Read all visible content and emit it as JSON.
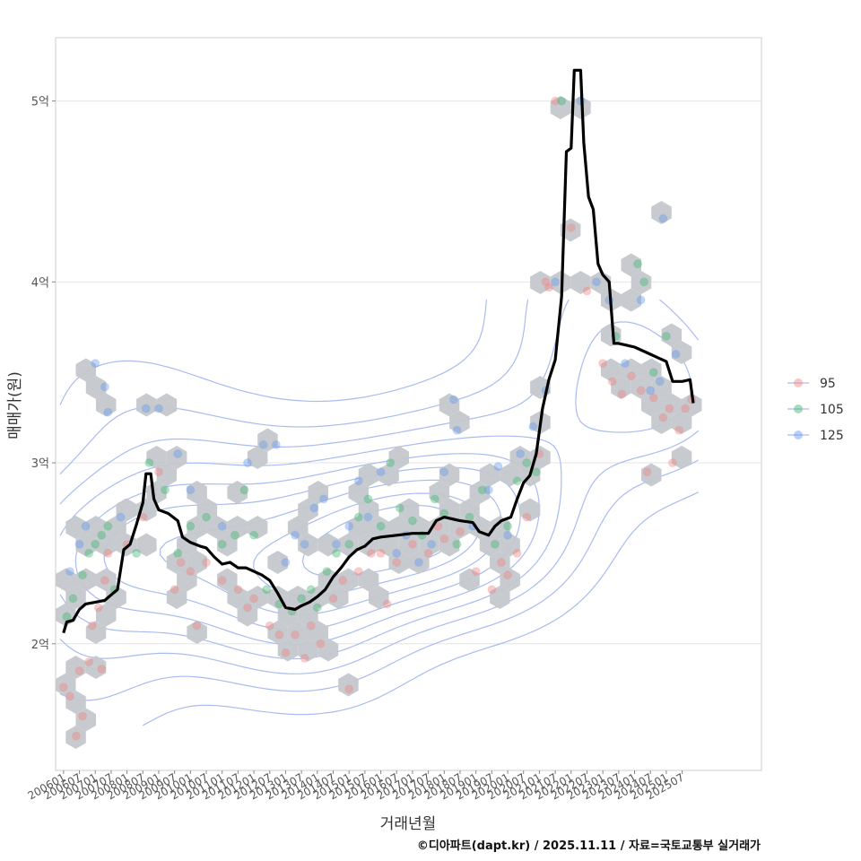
{
  "chart_data": {
    "type": "scatter",
    "title": "",
    "xlabel": "거래년월",
    "ylabel": "매매가(원)",
    "xlim": [
      2005.75,
      2028.0
    ],
    "ylim": [
      1.3,
      5.35
    ],
    "y_ticks": [
      {
        "value": 2,
        "label": "2억"
      },
      {
        "value": 3,
        "label": "3억"
      },
      {
        "value": 4,
        "label": "4억"
      },
      {
        "value": 5,
        "label": "5억"
      }
    ],
    "x_ticks": [
      {
        "value": 2006.0,
        "label": "200601"
      },
      {
        "value": 2006.5,
        "label": "200607"
      },
      {
        "value": 2007.0,
        "label": "200701"
      },
      {
        "value": 2007.5,
        "label": "200707"
      },
      {
        "value": 2008.0,
        "label": "200801"
      },
      {
        "value": 2008.5,
        "label": "200807"
      },
      {
        "value": 2009.0,
        "label": "200901"
      },
      {
        "value": 2009.5,
        "label": "200907"
      },
      {
        "value": 2010.0,
        "label": "201001"
      },
      {
        "value": 2010.5,
        "label": "201007"
      },
      {
        "value": 2011.0,
        "label": "201101"
      },
      {
        "value": 2011.5,
        "label": "201107"
      },
      {
        "value": 2012.0,
        "label": "201201"
      },
      {
        "value": 2012.5,
        "label": "201207"
      },
      {
        "value": 2013.0,
        "label": "201301"
      },
      {
        "value": 2013.5,
        "label": "201307"
      },
      {
        "value": 2014.0,
        "label": "201401"
      },
      {
        "value": 2014.5,
        "label": "201407"
      },
      {
        "value": 2015.0,
        "label": "201501"
      },
      {
        "value": 2015.5,
        "label": "201507"
      },
      {
        "value": 2016.0,
        "label": "201601"
      },
      {
        "value": 2016.5,
        "label": "201607"
      },
      {
        "value": 2017.0,
        "label": "201701"
      },
      {
        "value": 2017.5,
        "label": "201707"
      },
      {
        "value": 2018.0,
        "label": "201801"
      },
      {
        "value": 2018.5,
        "label": "201807"
      },
      {
        "value": 2019.0,
        "label": "201901"
      },
      {
        "value": 2019.5,
        "label": "201907"
      },
      {
        "value": 2020.0,
        "label": "202001"
      },
      {
        "value": 2020.5,
        "label": "202007"
      },
      {
        "value": 2021.0,
        "label": "202101"
      },
      {
        "value": 2021.5,
        "label": "202107"
      },
      {
        "value": 2022.0,
        "label": "202201"
      },
      {
        "value": 2022.5,
        "label": "202207"
      },
      {
        "value": 2023.0,
        "label": "202301"
      },
      {
        "value": 2023.5,
        "label": "202307"
      },
      {
        "value": 2024.0,
        "label": "202401"
      },
      {
        "value": 2024.5,
        "label": "202407"
      },
      {
        "value": 2025.0,
        "label": "202501"
      },
      {
        "value": 2025.5,
        "label": "202507"
      }
    ],
    "legend": {
      "position": "right",
      "entries": [
        {
          "name": "95",
          "color": "#f08080"
        },
        {
          "name": "105",
          "color": "#3cb371"
        },
        {
          "name": "125",
          "color": "#6495ed"
        }
      ]
    },
    "hex_color": "#c4c8cc",
    "contour_color": "#a9bcf0",
    "line_color": "#000000",
    "trend_line": {
      "name": "moving-average price",
      "points": [
        [
          2006.0,
          2.06
        ],
        [
          2006.1,
          2.12
        ],
        [
          2006.3,
          2.13
        ],
        [
          2006.5,
          2.19
        ],
        [
          2006.7,
          2.22
        ],
        [
          2007.0,
          2.23
        ],
        [
          2007.3,
          2.24
        ],
        [
          2007.5,
          2.27
        ],
        [
          2007.7,
          2.3
        ],
        [
          2007.9,
          2.52
        ],
        [
          2008.1,
          2.55
        ],
        [
          2008.3,
          2.66
        ],
        [
          2008.5,
          2.78
        ],
        [
          2008.6,
          2.94
        ],
        [
          2008.75,
          2.94
        ],
        [
          2008.85,
          2.8
        ],
        [
          2009.0,
          2.74
        ],
        [
          2009.3,
          2.72
        ],
        [
          2009.6,
          2.68
        ],
        [
          2009.75,
          2.59
        ],
        [
          2010.0,
          2.56
        ],
        [
          2010.3,
          2.54
        ],
        [
          2010.5,
          2.53
        ],
        [
          2010.75,
          2.48
        ],
        [
          2011.0,
          2.44
        ],
        [
          2011.25,
          2.45
        ],
        [
          2011.5,
          2.42
        ],
        [
          2011.75,
          2.42
        ],
        [
          2012.0,
          2.4
        ],
        [
          2012.25,
          2.38
        ],
        [
          2012.5,
          2.35
        ],
        [
          2012.75,
          2.28
        ],
        [
          2013.0,
          2.2
        ],
        [
          2013.3,
          2.19
        ],
        [
          2013.5,
          2.21
        ],
        [
          2013.75,
          2.23
        ],
        [
          2014.0,
          2.26
        ],
        [
          2014.25,
          2.3
        ],
        [
          2014.5,
          2.37
        ],
        [
          2014.75,
          2.42
        ],
        [
          2015.0,
          2.48
        ],
        [
          2015.25,
          2.52
        ],
        [
          2015.5,
          2.54
        ],
        [
          2015.75,
          2.58
        ],
        [
          2016.0,
          2.59
        ],
        [
          2016.5,
          2.6
        ],
        [
          2017.0,
          2.61
        ],
        [
          2017.5,
          2.61
        ],
        [
          2017.75,
          2.68
        ],
        [
          2018.0,
          2.7
        ],
        [
          2018.5,
          2.68
        ],
        [
          2018.9,
          2.67
        ],
        [
          2019.1,
          2.62
        ],
        [
          2019.4,
          2.6
        ],
        [
          2019.6,
          2.65
        ],
        [
          2019.8,
          2.68
        ],
        [
          2020.1,
          2.7
        ],
        [
          2020.3,
          2.8
        ],
        [
          2020.5,
          2.89
        ],
        [
          2020.7,
          2.93
        ],
        [
          2020.9,
          3.05
        ],
        [
          2021.1,
          3.3
        ],
        [
          2021.3,
          3.46
        ],
        [
          2021.5,
          3.57
        ],
        [
          2021.7,
          3.92
        ],
        [
          2021.85,
          4.72
        ],
        [
          2022.0,
          4.74
        ],
        [
          2022.1,
          5.17
        ],
        [
          2022.3,
          5.17
        ],
        [
          2022.4,
          4.77
        ],
        [
          2022.55,
          4.47
        ],
        [
          2022.7,
          4.4
        ],
        [
          2022.85,
          4.1
        ],
        [
          2023.0,
          4.04
        ],
        [
          2023.2,
          4.0
        ],
        [
          2023.35,
          3.66
        ],
        [
          2023.5,
          3.66
        ],
        [
          2023.75,
          3.65
        ],
        [
          2024.0,
          3.64
        ],
        [
          2024.25,
          3.62
        ],
        [
          2024.5,
          3.6
        ],
        [
          2024.75,
          3.58
        ],
        [
          2025.0,
          3.56
        ],
        [
          2025.2,
          3.45
        ],
        [
          2025.5,
          3.45
        ],
        [
          2025.75,
          3.46
        ],
        [
          2025.85,
          3.33
        ]
      ]
    },
    "series": [
      {
        "name": "95",
        "points": [
          [
            2006.0,
            1.76
          ],
          [
            2006.2,
            1.71
          ],
          [
            2006.5,
            1.85
          ],
          [
            2006.8,
            1.9
          ],
          [
            2006.6,
            1.6
          ],
          [
            2006.4,
            1.49
          ],
          [
            2006.9,
            2.1
          ],
          [
            2007.1,
            2.2
          ],
          [
            2007.3,
            2.35
          ],
          [
            2007.2,
            1.86
          ],
          [
            2007.4,
            2.5
          ],
          [
            2008.0,
            2.55
          ],
          [
            2008.5,
            2.7
          ],
          [
            2009.0,
            2.95
          ],
          [
            2009.5,
            2.3
          ],
          [
            2009.7,
            2.45
          ],
          [
            2010.0,
            2.4
          ],
          [
            2010.2,
            2.1
          ],
          [
            2010.5,
            2.45
          ],
          [
            2011.0,
            2.35
          ],
          [
            2011.5,
            2.3
          ],
          [
            2011.8,
            2.2
          ],
          [
            2012.0,
            2.25
          ],
          [
            2012.5,
            2.1
          ],
          [
            2012.8,
            2.05
          ],
          [
            2013.0,
            1.95
          ],
          [
            2013.3,
            2.05
          ],
          [
            2013.6,
            1.92
          ],
          [
            2013.8,
            2.1
          ],
          [
            2014.1,
            2.0
          ],
          [
            2014.5,
            2.25
          ],
          [
            2014.8,
            2.35
          ],
          [
            2015.0,
            1.75
          ],
          [
            2015.3,
            2.4
          ],
          [
            2015.7,
            2.5
          ],
          [
            2016.0,
            2.5
          ],
          [
            2016.2,
            2.22
          ],
          [
            2016.5,
            2.45
          ],
          [
            2017.0,
            2.55
          ],
          [
            2017.5,
            2.5
          ],
          [
            2017.8,
            2.65
          ],
          [
            2018.0,
            2.58
          ],
          [
            2018.5,
            2.62
          ],
          [
            2019.0,
            2.4
          ],
          [
            2019.5,
            2.3
          ],
          [
            2019.8,
            2.45
          ],
          [
            2020.0,
            2.38
          ],
          [
            2020.3,
            2.5
          ],
          [
            2020.6,
            2.7
          ],
          [
            2021.0,
            3.05
          ],
          [
            2021.2,
            4.0
          ],
          [
            2021.3,
            3.97
          ],
          [
            2021.5,
            5.0
          ],
          [
            2022.0,
            4.3
          ],
          [
            2022.5,
            3.95
          ],
          [
            2023.0,
            3.55
          ],
          [
            2023.3,
            3.45
          ],
          [
            2023.6,
            3.38
          ],
          [
            2023.9,
            3.48
          ],
          [
            2024.2,
            3.4
          ],
          [
            2024.4,
            2.95
          ],
          [
            2024.6,
            3.36
          ],
          [
            2024.9,
            3.25
          ],
          [
            2025.1,
            3.3
          ],
          [
            2025.2,
            3.0
          ],
          [
            2025.4,
            3.18
          ],
          [
            2025.6,
            3.3
          ],
          [
            2025.8,
            3.35
          ]
        ]
      },
      {
        "name": "105",
        "points": [
          [
            2006.1,
            2.15
          ],
          [
            2006.3,
            2.25
          ],
          [
            2006.6,
            2.38
          ],
          [
            2006.8,
            2.5
          ],
          [
            2007.0,
            2.55
          ],
          [
            2007.2,
            2.6
          ],
          [
            2007.4,
            2.65
          ],
          [
            2007.6,
            2.3
          ],
          [
            2008.3,
            2.5
          ],
          [
            2008.7,
            3.0
          ],
          [
            2009.2,
            2.85
          ],
          [
            2009.6,
            2.5
          ],
          [
            2010.0,
            2.65
          ],
          [
            2010.5,
            2.7
          ],
          [
            2011.0,
            2.55
          ],
          [
            2011.4,
            2.6
          ],
          [
            2011.7,
            2.85
          ],
          [
            2012.0,
            2.6
          ],
          [
            2012.4,
            2.3
          ],
          [
            2012.8,
            2.22
          ],
          [
            2013.2,
            2.18
          ],
          [
            2013.5,
            2.25
          ],
          [
            2013.8,
            2.3
          ],
          [
            2014.0,
            2.2
          ],
          [
            2014.3,
            2.4
          ],
          [
            2014.6,
            2.5
          ],
          [
            2015.0,
            2.55
          ],
          [
            2015.3,
            2.7
          ],
          [
            2015.6,
            2.8
          ],
          [
            2016.0,
            2.65
          ],
          [
            2016.3,
            3.0
          ],
          [
            2016.6,
            2.75
          ],
          [
            2017.0,
            2.68
          ],
          [
            2017.3,
            2.6
          ],
          [
            2017.7,
            2.8
          ],
          [
            2018.0,
            2.72
          ],
          [
            2018.4,
            2.55
          ],
          [
            2018.8,
            2.7
          ],
          [
            2019.2,
            2.85
          ],
          [
            2019.6,
            2.55
          ],
          [
            2020.0,
            2.65
          ],
          [
            2020.3,
            2.9
          ],
          [
            2020.6,
            3.0
          ],
          [
            2020.9,
            2.95
          ],
          [
            2021.7,
            5.0
          ],
          [
            2023.4,
            3.7
          ],
          [
            2024.1,
            4.1
          ],
          [
            2024.3,
            4.0
          ],
          [
            2024.6,
            3.5
          ],
          [
            2025.0,
            3.7
          ]
        ]
      },
      {
        "name": "125",
        "points": [
          [
            2006.2,
            2.4
          ],
          [
            2006.5,
            2.55
          ],
          [
            2006.7,
            2.65
          ],
          [
            2007.0,
            3.55
          ],
          [
            2007.3,
            3.42
          ],
          [
            2007.4,
            3.28
          ],
          [
            2007.8,
            2.7
          ],
          [
            2008.6,
            3.3
          ],
          [
            2009.0,
            3.3
          ],
          [
            2009.6,
            3.05
          ],
          [
            2010.0,
            2.85
          ],
          [
            2011.0,
            2.65
          ],
          [
            2011.8,
            3.0
          ],
          [
            2012.3,
            3.1
          ],
          [
            2012.7,
            3.1
          ],
          [
            2013.0,
            2.45
          ],
          [
            2013.3,
            2.6
          ],
          [
            2013.6,
            2.55
          ],
          [
            2013.9,
            2.75
          ],
          [
            2014.2,
            2.8
          ],
          [
            2014.6,
            2.55
          ],
          [
            2015.0,
            2.65
          ],
          [
            2015.3,
            2.9
          ],
          [
            2015.6,
            2.7
          ],
          [
            2016.0,
            2.95
          ],
          [
            2016.5,
            2.5
          ],
          [
            2016.8,
            2.6
          ],
          [
            2017.2,
            2.45
          ],
          [
            2017.6,
            2.55
          ],
          [
            2018.0,
            2.95
          ],
          [
            2018.3,
            3.35
          ],
          [
            2018.4,
            3.18
          ],
          [
            2018.9,
            2.65
          ],
          [
            2019.4,
            2.85
          ],
          [
            2019.7,
            2.98
          ],
          [
            2020.0,
            2.6
          ],
          [
            2020.4,
            3.05
          ],
          [
            2020.8,
            3.2
          ],
          [
            2021.2,
            3.4
          ],
          [
            2021.5,
            4.0
          ],
          [
            2022.3,
            5.0
          ],
          [
            2022.8,
            4.0
          ],
          [
            2023.2,
            3.9
          ],
          [
            2023.7,
            3.55
          ],
          [
            2024.2,
            3.9
          ],
          [
            2024.5,
            3.4
          ],
          [
            2024.8,
            3.45
          ],
          [
            2024.9,
            4.35
          ],
          [
            2025.3,
            3.6
          ]
        ]
      }
    ]
  },
  "caption": "©디아파트(dapt.kr) / 2025.11.11 / 자료=국토교통부 실거래가"
}
